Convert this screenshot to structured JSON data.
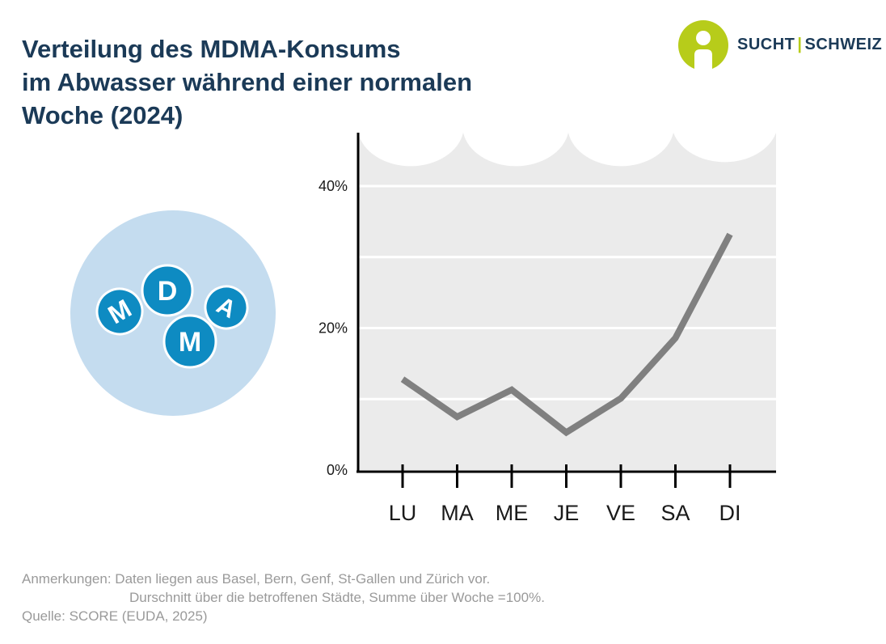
{
  "title_lines": [
    "Verteilung des MDMA-Konsums",
    "im Abwasser während einer normalen",
    "Woche (2024)"
  ],
  "logo": {
    "text_left": "SUCHT",
    "separator": "|",
    "text_right": "SCHWEIZ",
    "icon": "person-info-icon"
  },
  "illustration": {
    "letters": [
      "M",
      "D",
      "M",
      "A"
    ]
  },
  "colors": {
    "title": "#1b3a57",
    "logo_green": "#b7cc1a",
    "circle_bg": "#c4dcef",
    "pill": "#0e8bc2",
    "plot_bg": "#ebebeb",
    "line": "#808080",
    "notes": "#9a9a9a"
  },
  "chart_data": {
    "type": "line",
    "categories": [
      "LU",
      "MA",
      "ME",
      "JE",
      "VE",
      "SA",
      "DI"
    ],
    "series": [
      {
        "values": [
          12.8,
          7.5,
          11.3,
          5.3,
          10.1,
          18.6,
          33.2
        ]
      }
    ],
    "y_ticks": [
      "0%",
      "20%",
      "40%"
    ],
    "ylim": [
      0,
      40
    ],
    "grid": true
  },
  "notes": {
    "line1": "Anmerkungen: Daten liegen aus Basel, Bern, Genf, St-Gallen und Zürich vor.",
    "line2": "Durschnitt über die betroffenen Städte, Summe über Woche =100%.",
    "line3": "Quelle: SCORE (EUDA, 2025)"
  }
}
